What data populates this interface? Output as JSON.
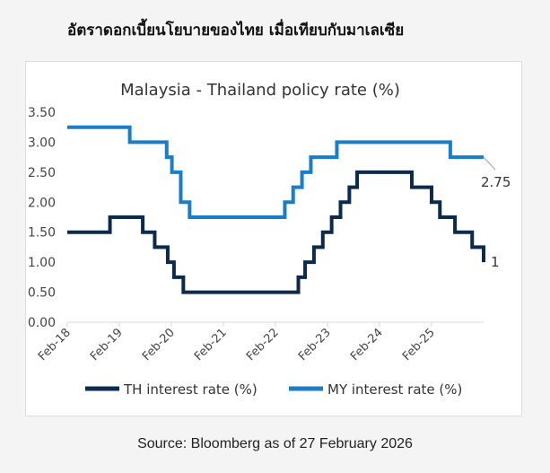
{
  "heading": "อัตราดอกเบี้ยนโยบายของไทย เมื่อเทียบกับมาเลเซีย",
  "source": "Source: Bloomberg as of 27 February 2026",
  "chart_data": {
    "type": "line",
    "title": "Malaysia - Thailand policy rate (%)",
    "xlabel": "",
    "ylabel": "",
    "ylim": [
      0,
      3.5
    ],
    "xlim": [
      2018.08,
      2026.08
    ],
    "yticks": [
      "0.00",
      "0.50",
      "1.00",
      "1.50",
      "2.00",
      "2.50",
      "3.00",
      "3.50"
    ],
    "xticks": [
      {
        "x": 2018.08,
        "label": "Feb-18"
      },
      {
        "x": 2019.08,
        "label": "Feb-19"
      },
      {
        "x": 2020.08,
        "label": "Feb-20"
      },
      {
        "x": 2021.08,
        "label": "Feb-21"
      },
      {
        "x": 2022.08,
        "label": "Feb-22"
      },
      {
        "x": 2023.08,
        "label": "Feb-23"
      },
      {
        "x": 2024.08,
        "label": "Feb-24"
      },
      {
        "x": 2025.08,
        "label": "Feb-25"
      }
    ],
    "legend_position": "bottom",
    "series": [
      {
        "name": "TH interest rate (%)",
        "color": "#0b2a4e",
        "end_label": "1",
        "step": true,
        "points": [
          [
            2018.08,
            1.5
          ],
          [
            2018.9,
            1.75
          ],
          [
            2019.53,
            1.5
          ],
          [
            2019.76,
            1.25
          ],
          [
            2020.01,
            1.0
          ],
          [
            2020.13,
            0.75
          ],
          [
            2020.31,
            0.5
          ],
          [
            2022.52,
            0.75
          ],
          [
            2022.65,
            1.0
          ],
          [
            2022.82,
            1.25
          ],
          [
            2022.99,
            1.5
          ],
          [
            2023.16,
            1.75
          ],
          [
            2023.33,
            2.0
          ],
          [
            2023.5,
            2.25
          ],
          [
            2023.65,
            2.5
          ],
          [
            2024.7,
            2.25
          ],
          [
            2025.08,
            2.0
          ],
          [
            2025.24,
            1.75
          ],
          [
            2025.53,
            1.5
          ],
          [
            2025.86,
            1.25
          ],
          [
            2026.08,
            1.0
          ]
        ]
      },
      {
        "name": "MY interest rate (%)",
        "color": "#1a7dcc",
        "end_label": "2.75",
        "step": true,
        "points": [
          [
            2018.08,
            3.25
          ],
          [
            2019.28,
            3.0
          ],
          [
            2019.99,
            2.75
          ],
          [
            2020.09,
            2.5
          ],
          [
            2020.26,
            2.0
          ],
          [
            2020.43,
            1.75
          ],
          [
            2022.26,
            2.0
          ],
          [
            2022.42,
            2.25
          ],
          [
            2022.59,
            2.5
          ],
          [
            2022.76,
            2.75
          ],
          [
            2023.26,
            3.0
          ],
          [
            2025.44,
            2.75
          ],
          [
            2026.08,
            2.75
          ]
        ]
      }
    ]
  }
}
